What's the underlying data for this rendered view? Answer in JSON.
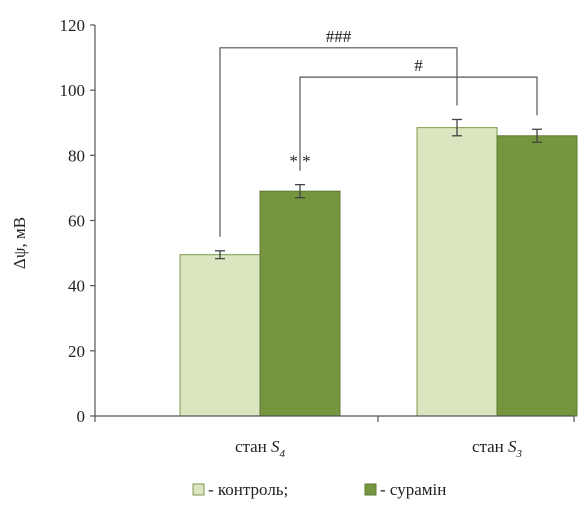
{
  "colors": {
    "control": "#dbe6c1",
    "control_edge": "#7d9a4c",
    "suramin": "#76953f",
    "suramin_edge": "#5f7a31",
    "axis": "#555555",
    "bracket": "#555555"
  },
  "chart_data": {
    "type": "bar",
    "ylabel": "Δψ, мВ",
    "ylim": [
      0,
      120
    ],
    "yticks": [
      0,
      20,
      40,
      60,
      80,
      100,
      120
    ],
    "grid": false,
    "legend_position": "bottom-center",
    "categories": [
      {
        "prefix": "стан ",
        "italic": "S",
        "sub": "4"
      },
      {
        "prefix": "стан ",
        "italic": "S",
        "sub": "3"
      }
    ],
    "series": [
      {
        "name": "контроль",
        "values": [
          49.5,
          88.5
        ],
        "errors": [
          1.2,
          2.5
        ]
      },
      {
        "name": "сурамін",
        "values": [
          69.0,
          86.0
        ],
        "errors": [
          2.0,
          2.0
        ]
      }
    ],
    "annotations": {
      "stars": {
        "text": "* *",
        "category": 0,
        "series": 1
      },
      "brackets": [
        {
          "label": "###",
          "from": [
            0,
            0
          ],
          "to": [
            1,
            0
          ],
          "top": 113
        },
        {
          "label": "#",
          "from": [
            0,
            1
          ],
          "to": [
            1,
            1
          ],
          "top": 104
        }
      ]
    },
    "legend_entries": [
      {
        "text": "- контроль;",
        "series": 0
      },
      {
        "text": "- сурамін",
        "series": 1
      }
    ]
  }
}
